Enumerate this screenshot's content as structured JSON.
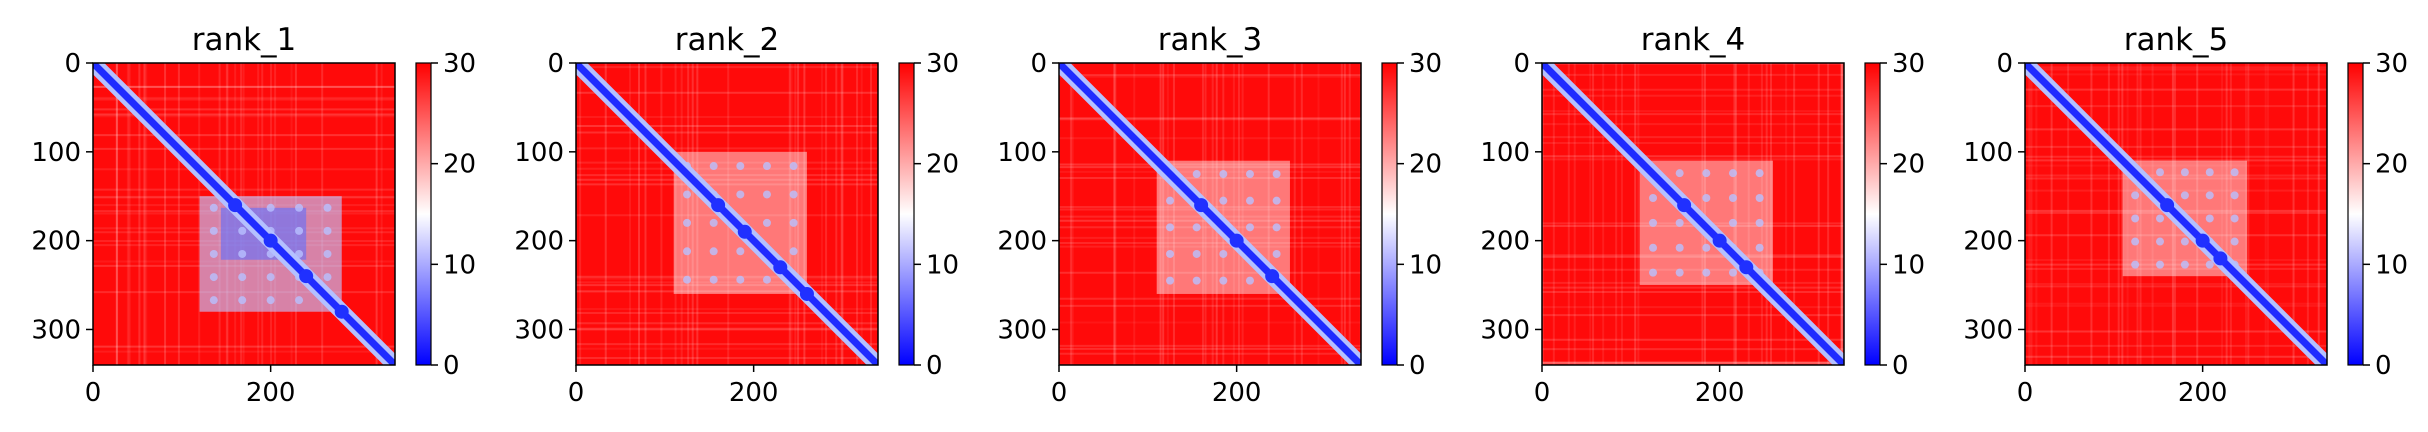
{
  "chart_data": [
    {
      "type": "heatmap",
      "title": "rank_1",
      "x_ticks": [
        "0",
        "200"
      ],
      "y_ticks": [
        "0",
        "100",
        "200",
        "300"
      ],
      "xlim": [
        0,
        340
      ],
      "ylim": [
        340,
        0
      ],
      "colorbar": {
        "ticks": [
          "0",
          "10",
          "20",
          "30"
        ],
        "range": [
          0,
          30
        ],
        "cmap": [
          "#0000ff",
          "#ffffff",
          "#ff0000"
        ]
      },
      "blue_block": {
        "x": [
          120,
          280
        ],
        "y": [
          150,
          280
        ],
        "strength": 0.85
      },
      "contact_spots": [
        [
          160,
          160
        ],
        [
          200,
          200
        ],
        [
          240,
          240
        ],
        [
          280,
          280
        ]
      ]
    },
    {
      "type": "heatmap",
      "title": "rank_2",
      "x_ticks": [
        "0",
        "200"
      ],
      "y_ticks": [
        "0",
        "100",
        "200",
        "300"
      ],
      "xlim": [
        0,
        340
      ],
      "ylim": [
        340,
        0
      ],
      "colorbar": {
        "ticks": [
          "0",
          "10",
          "20",
          "30"
        ],
        "range": [
          0,
          30
        ],
        "cmap": [
          "#0000ff",
          "#ffffff",
          "#ff0000"
        ]
      },
      "blue_block": {
        "x": [
          110,
          260
        ],
        "y": [
          100,
          260
        ],
        "strength": 0.35
      },
      "contact_spots": [
        [
          160,
          160
        ],
        [
          190,
          190
        ],
        [
          230,
          230
        ],
        [
          260,
          260
        ]
      ]
    },
    {
      "type": "heatmap",
      "title": "rank_3",
      "x_ticks": [
        "0",
        "200"
      ],
      "y_ticks": [
        "0",
        "100",
        "200",
        "300"
      ],
      "xlim": [
        0,
        340
      ],
      "ylim": [
        340,
        0
      ],
      "colorbar": {
        "ticks": [
          "0",
          "10",
          "20",
          "30"
        ],
        "range": [
          0,
          30
        ],
        "cmap": [
          "#0000ff",
          "#ffffff",
          "#ff0000"
        ]
      },
      "blue_block": {
        "x": [
          110,
          260
        ],
        "y": [
          110,
          260
        ],
        "strength": 0.35
      },
      "contact_spots": [
        [
          160,
          160
        ],
        [
          200,
          200
        ],
        [
          240,
          240
        ]
      ]
    },
    {
      "type": "heatmap",
      "title": "rank_4",
      "x_ticks": [
        "0",
        "200"
      ],
      "y_ticks": [
        "0",
        "100",
        "200",
        "300"
      ],
      "xlim": [
        0,
        340
      ],
      "ylim": [
        340,
        0
      ],
      "colorbar": {
        "ticks": [
          "0",
          "10",
          "20",
          "30"
        ],
        "range": [
          0,
          30
        ],
        "cmap": [
          "#0000ff",
          "#ffffff",
          "#ff0000"
        ]
      },
      "blue_block": {
        "x": [
          110,
          260
        ],
        "y": [
          110,
          250
        ],
        "strength": 0.3
      },
      "contact_spots": [
        [
          160,
          160
        ],
        [
          200,
          200
        ],
        [
          230,
          230
        ]
      ]
    },
    {
      "type": "heatmap",
      "title": "rank_5",
      "x_ticks": [
        "0",
        "200"
      ],
      "y_ticks": [
        "0",
        "100",
        "200",
        "300"
      ],
      "xlim": [
        0,
        340
      ],
      "ylim": [
        340,
        0
      ],
      "colorbar": {
        "ticks": [
          "0",
          "10",
          "20",
          "30"
        ],
        "range": [
          0,
          30
        ],
        "cmap": [
          "#0000ff",
          "#ffffff",
          "#ff0000"
        ]
      },
      "blue_block": {
        "x": [
          110,
          250
        ],
        "y": [
          110,
          240
        ],
        "strength": 0.3
      },
      "contact_spots": [
        [
          160,
          160
        ],
        [
          200,
          200
        ],
        [
          220,
          220
        ]
      ]
    }
  ]
}
